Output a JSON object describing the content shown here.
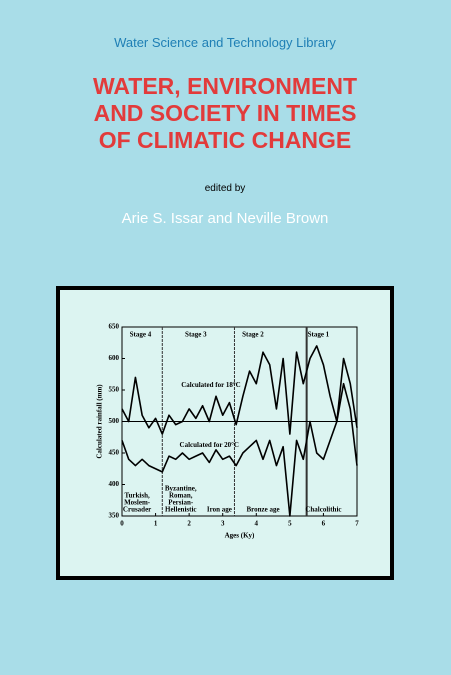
{
  "header": {
    "series": "Water Science and Technology Library",
    "title_lines": [
      "WATER, ENVIRONMENT",
      "AND SOCIETY IN TIMES",
      "OF CLIMATIC CHANGE"
    ],
    "edited_by": "edited by",
    "editors": "Arie S. Issar and Neville Brown"
  },
  "chart_data": {
    "type": "line",
    "xlabel": "Ages (Ky)",
    "ylabel": "Calculated rainfall (mm)",
    "xlim": [
      0,
      7
    ],
    "xticks": [
      0,
      1,
      2,
      3,
      4,
      5,
      6,
      7
    ],
    "ylim": [
      350,
      650
    ],
    "yticks": [
      350,
      400,
      450,
      500,
      550,
      600,
      650
    ],
    "x": [
      0,
      0.2,
      0.4,
      0.6,
      0.8,
      1.0,
      1.2,
      1.4,
      1.6,
      1.8,
      2.0,
      2.2,
      2.4,
      2.6,
      2.8,
      3.0,
      3.2,
      3.4,
      3.6,
      3.8,
      4.0,
      4.2,
      4.4,
      4.6,
      4.8,
      5.0,
      5.2,
      5.4,
      5.6,
      5.8,
      6.0,
      6.2,
      6.4,
      6.6,
      6.8,
      7.0
    ],
    "series": [
      {
        "color": "#000000",
        "values": [
          520,
          500,
          570,
          510,
          490,
          505,
          480,
          510,
          495,
          500,
          520,
          505,
          525,
          500,
          540,
          510,
          530,
          495,
          540,
          580,
          560,
          610,
          590,
          520,
          600,
          480,
          610,
          560,
          600,
          620,
          590,
          540,
          500,
          600,
          560,
          490
        ]
      },
      {
        "color": "#000000",
        "values": [
          470,
          440,
          430,
          440,
          430,
          425,
          420,
          445,
          440,
          450,
          440,
          445,
          450,
          435,
          455,
          440,
          445,
          430,
          450,
          460,
          470,
          440,
          470,
          430,
          460,
          350,
          470,
          440,
          500,
          450,
          440,
          470,
          500,
          560,
          520,
          430
        ]
      }
    ],
    "reference_line": 500,
    "stage_boundaries": [
      1.2,
      3.35,
      5.5
    ],
    "stages": [
      "Stage 4",
      "Stage 3",
      "Stage 2",
      "Stage 1"
    ],
    "annotations": [
      "Calculated for 18°C",
      "Calculated for 20°C"
    ],
    "eras": [
      [
        "Turkish,",
        "Moslem-",
        "Crusader"
      ],
      [
        "Byzantine,",
        "Roman,",
        "Persian-",
        "Hellenistic"
      ],
      [
        "Iron age"
      ],
      [
        "Bronze age"
      ],
      [
        "Chalcolithic"
      ]
    ]
  }
}
